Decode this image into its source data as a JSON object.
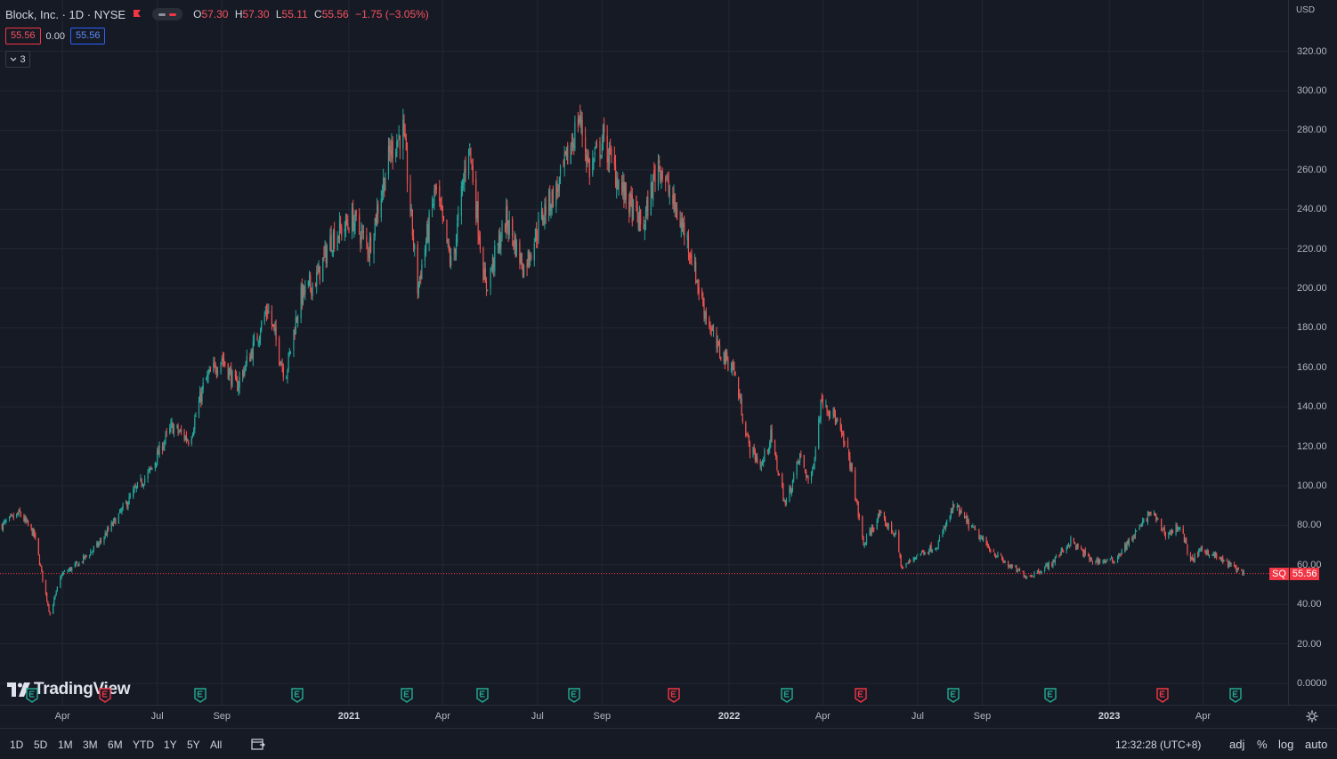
{
  "header": {
    "title": "Block, Inc. · 1D · NYSE",
    "ohlc": [
      {
        "k": "O",
        "v": "57.30"
      },
      {
        "k": "H",
        "v": "57.30"
      },
      {
        "k": "L",
        "v": "55.11"
      },
      {
        "k": "C",
        "v": "55.56"
      }
    ],
    "change": "−1.75 (−3.05%)",
    "bid": "55.56",
    "spread": "0.00",
    "ask": "55.56",
    "indicators_count": "3"
  },
  "axis": {
    "currency": "USD",
    "y_ticks": [
      "320.00",
      "300.00",
      "280.00",
      "260.00",
      "240.00",
      "220.00",
      "200.00",
      "180.00",
      "160.00",
      "140.00",
      "120.00",
      "100.00",
      "80.00",
      "60.00",
      "40.00",
      "20.00",
      "0.0000"
    ],
    "x_ticks": [
      {
        "label": "Apr",
        "year": false
      },
      {
        "label": "Jul",
        "year": false
      },
      {
        "label": "Sep",
        "year": false
      },
      {
        "label": "2021",
        "year": true
      },
      {
        "label": "Apr",
        "year": false
      },
      {
        "label": "Jul",
        "year": false
      },
      {
        "label": "Sep",
        "year": false
      },
      {
        "label": "2022",
        "year": true
      },
      {
        "label": "Apr",
        "year": false
      },
      {
        "label": "Jul",
        "year": false
      },
      {
        "label": "Sep",
        "year": false
      },
      {
        "label": "2023",
        "year": true
      },
      {
        "label": "Apr",
        "year": false
      }
    ]
  },
  "last_price": {
    "symbol": "SQ",
    "value": "55.56"
  },
  "bottom_bar": {
    "ranges": [
      "1D",
      "5D",
      "1M",
      "3M",
      "6M",
      "YTD",
      "1Y",
      "5Y",
      "All"
    ],
    "time": "12:32:28 (UTC+8)",
    "options": [
      "adj",
      "%",
      "log",
      "auto"
    ]
  },
  "logo_text": "TradingView",
  "events": [
    {
      "type": "earnings",
      "result": "beat"
    },
    {
      "type": "earnings",
      "result": "miss"
    },
    {
      "type": "earnings",
      "result": "beat"
    },
    {
      "type": "earnings",
      "result": "beat"
    },
    {
      "type": "earnings",
      "result": "beat"
    },
    {
      "type": "earnings",
      "result": "beat"
    },
    {
      "type": "earnings",
      "result": "beat"
    },
    {
      "type": "earnings",
      "result": "miss"
    },
    {
      "type": "earnings",
      "result": "beat"
    },
    {
      "type": "earnings",
      "result": "miss"
    },
    {
      "type": "earnings",
      "result": "beat"
    },
    {
      "type": "earnings",
      "result": "beat"
    },
    {
      "type": "earnings",
      "result": "miss"
    },
    {
      "type": "earnings",
      "result": "beat"
    }
  ],
  "colors": {
    "up": "#26a69a",
    "down": "#ef5350",
    "background": "#161a25",
    "grid": "#232733",
    "last_price_line": "#f23645"
  },
  "chart_data": {
    "type": "candlestick",
    "ylim": [
      0,
      330
    ],
    "grid": true,
    "x_start": "2020-02",
    "x_end": "2023-05",
    "close_path": [
      [
        "2020-02-03",
        80
      ],
      [
        "2020-02-20",
        86
      ],
      [
        "2020-03-05",
        75
      ],
      [
        "2020-03-16",
        45
      ],
      [
        "2020-03-20",
        35
      ],
      [
        "2020-03-31",
        55
      ],
      [
        "2020-04-15",
        60
      ],
      [
        "2020-05-05",
        70
      ],
      [
        "2020-05-25",
        85
      ],
      [
        "2020-06-10",
        98
      ],
      [
        "2020-06-25",
        108
      ],
      [
        "2020-07-05",
        120
      ],
      [
        "2020-07-15",
        130
      ],
      [
        "2020-08-01",
        123
      ],
      [
        "2020-08-15",
        152
      ],
      [
        "2020-09-01",
        165
      ],
      [
        "2020-09-15",
        150
      ],
      [
        "2020-10-01",
        170
      ],
      [
        "2020-10-15",
        190
      ],
      [
        "2020-11-01",
        155
      ],
      [
        "2020-11-15",
        195
      ],
      [
        "2020-12-01",
        205
      ],
      [
        "2020-12-15",
        225
      ],
      [
        "2021-01-05",
        235
      ],
      [
        "2021-01-20",
        220
      ],
      [
        "2021-02-10",
        270
      ],
      [
        "2021-02-22",
        280
      ],
      [
        "2021-03-08",
        200
      ],
      [
        "2021-03-25",
        250
      ],
      [
        "2021-04-10",
        210
      ],
      [
        "2021-04-26",
        275
      ],
      [
        "2021-05-12",
        200
      ],
      [
        "2021-06-01",
        235
      ],
      [
        "2021-06-18",
        210
      ],
      [
        "2021-07-08",
        240
      ],
      [
        "2021-07-20",
        250
      ],
      [
        "2021-08-01",
        270
      ],
      [
        "2021-08-10",
        287
      ],
      [
        "2021-08-20",
        260
      ],
      [
        "2021-09-02",
        275
      ],
      [
        "2021-09-20",
        250
      ],
      [
        "2021-10-10",
        230
      ],
      [
        "2021-10-25",
        265
      ],
      [
        "2021-11-10",
        240
      ],
      [
        "2021-11-22",
        225
      ],
      [
        "2021-12-05",
        195
      ],
      [
        "2021-12-20",
        170
      ],
      [
        "2022-01-05",
        160
      ],
      [
        "2022-01-20",
        120
      ],
      [
        "2022-02-01",
        110
      ],
      [
        "2022-02-10",
        125
      ],
      [
        "2022-02-24",
        90
      ],
      [
        "2022-03-10",
        115
      ],
      [
        "2022-03-20",
        100
      ],
      [
        "2022-03-31",
        145
      ],
      [
        "2022-04-12",
        135
      ],
      [
        "2022-04-26",
        115
      ],
      [
        "2022-05-10",
        70
      ],
      [
        "2022-05-25",
        85
      ],
      [
        "2022-06-10",
        75
      ],
      [
        "2022-06-16",
        58
      ],
      [
        "2022-06-30",
        65
      ],
      [
        "2022-07-20",
        70
      ],
      [
        "2022-08-05",
        90
      ],
      [
        "2022-08-20",
        80
      ],
      [
        "2022-09-05",
        70
      ],
      [
        "2022-09-25",
        60
      ],
      [
        "2022-10-15",
        54
      ],
      [
        "2022-11-05",
        60
      ],
      [
        "2022-11-25",
        72
      ],
      [
        "2022-12-15",
        62
      ],
      [
        "2023-01-05",
        62
      ],
      [
        "2023-01-25",
        75
      ],
      [
        "2023-02-10",
        87
      ],
      [
        "2023-02-25",
        75
      ],
      [
        "2023-03-10",
        80
      ],
      [
        "2023-03-20",
        62
      ],
      [
        "2023-04-01",
        68
      ],
      [
        "2023-04-20",
        62
      ],
      [
        "2023-05-10",
        56
      ]
    ],
    "last": {
      "open": 57.3,
      "high": 57.3,
      "low": 55.11,
      "close": 55.56,
      "change": -1.75,
      "change_pct": -3.05
    }
  }
}
